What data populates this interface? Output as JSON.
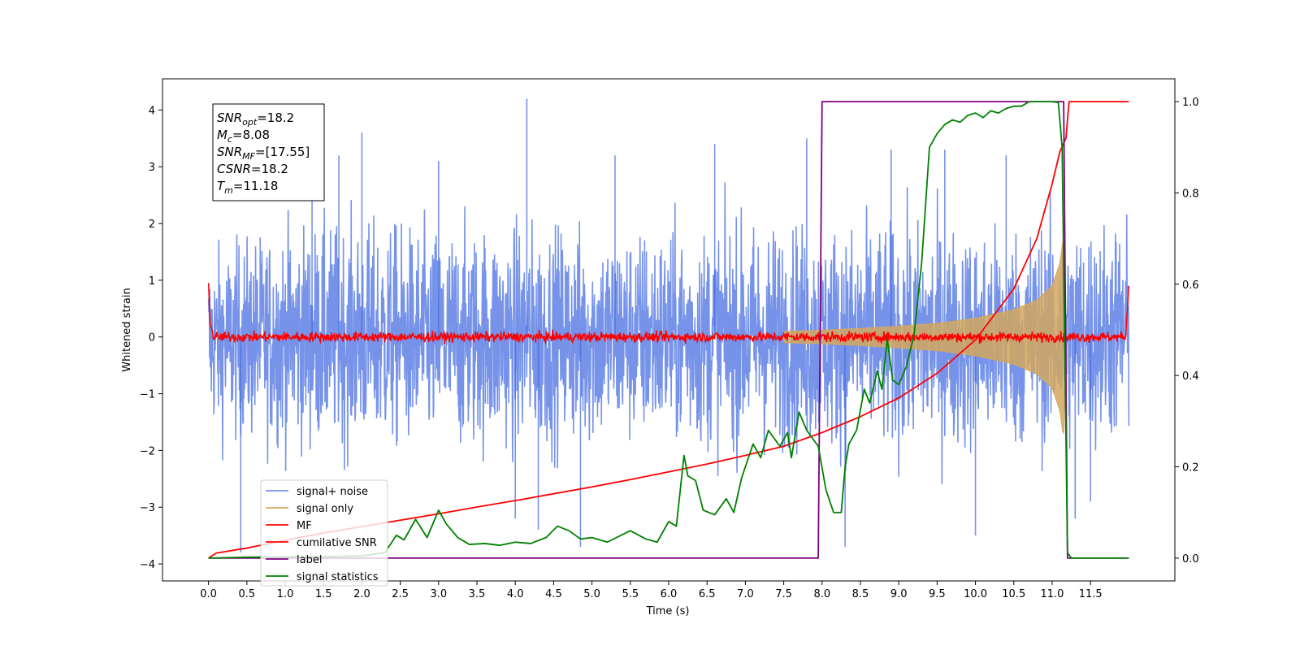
{
  "chart_data": {
    "type": "line",
    "xlabel": "Time (s)",
    "ylabel": "Whitened strain",
    "xlim": [
      -0.6,
      12.6
    ],
    "ylim": [
      -4.3,
      4.55
    ],
    "y2lim": [
      -0.05,
      1.05
    ],
    "x_ticks": [
      "0.0",
      "0.5",
      "1.0",
      "1.5",
      "2.0",
      "2.5",
      "3.0",
      "3.5",
      "4.0",
      "4.5",
      "5.0",
      "5.5",
      "6.0",
      "6.5",
      "7.0",
      "7.5",
      "8.0",
      "8.5",
      "9.0",
      "9.5",
      "10.0",
      "10.5",
      "11.0",
      "11.5"
    ],
    "y_ticks": [
      "4",
      "3",
      "2",
      "1",
      "0",
      "−1",
      "−2",
      "−3",
      "−4"
    ],
    "y2_ticks": [
      "1.0",
      "0.8",
      "0.6",
      "0.4",
      "0.2",
      "0.0"
    ],
    "grid": false,
    "legend_position": "lower-left",
    "annotation": {
      "lines": [
        {
          "sym": "SNR",
          "sub": "opt",
          "value": "=18.2"
        },
        {
          "sym": "M",
          "sub": "c",
          "value": "=8.08"
        },
        {
          "sym": "SNR",
          "sub": "MF",
          "value": "=[17.55]"
        },
        {
          "sym": "CSNR",
          "sub": "",
          "value": "=18.2"
        },
        {
          "sym": "T",
          "sub": "m",
          "value": "=11.18"
        }
      ]
    },
    "series": [
      {
        "name": "signal+ noise",
        "axis": "left",
        "color": "#4169e1",
        "kind": "noise_band",
        "x_range": [
          0.0,
          12.0
        ],
        "envelope_upper": [
          [
            0.0,
            2.1
          ],
          [
            1.0,
            2.6
          ],
          [
            2.0,
            2.7
          ],
          [
            3.0,
            2.6
          ],
          [
            4.0,
            2.7
          ],
          [
            5.0,
            2.6
          ],
          [
            6.0,
            2.6
          ],
          [
            7.0,
            2.7
          ],
          [
            8.0,
            2.7
          ],
          [
            9.0,
            2.7
          ],
          [
            10.0,
            2.6
          ],
          [
            11.0,
            2.7
          ],
          [
            12.0,
            2.8
          ]
        ],
        "envelope_lower": [
          [
            0.0,
            -2.3
          ],
          [
            1.0,
            -2.6
          ],
          [
            2.0,
            -2.7
          ],
          [
            3.0,
            -2.7
          ],
          [
            4.0,
            -2.7
          ],
          [
            5.0,
            -2.6
          ],
          [
            6.0,
            -2.6
          ],
          [
            7.0,
            -2.7
          ],
          [
            8.0,
            -2.7
          ],
          [
            9.0,
            -2.8
          ],
          [
            10.0,
            -2.7
          ],
          [
            11.0,
            -2.7
          ],
          [
            12.0,
            -2.6
          ]
        ],
        "spikes": [
          [
            0.42,
            -3.8
          ],
          [
            1.35,
            3.7
          ],
          [
            2.0,
            3.6
          ],
          [
            4.15,
            4.2
          ],
          [
            4.0,
            -3.2
          ],
          [
            4.3,
            -3.4
          ],
          [
            4.85,
            -3.7
          ],
          [
            6.6,
            3.4
          ],
          [
            7.8,
            3.5
          ],
          [
            8.3,
            -3.7
          ],
          [
            8.9,
            3.3
          ],
          [
            10.4,
            3.2
          ],
          [
            10.0,
            -3.5
          ],
          [
            11.3,
            -3.2
          ],
          [
            11.5,
            -2.9
          ],
          [
            1.7,
            3.2
          ],
          [
            3.0,
            3.1
          ],
          [
            5.3,
            3.2
          ],
          [
            9.6,
            3.3
          ]
        ]
      },
      {
        "name": "signal only",
        "axis": "left",
        "color": "#d4a75f",
        "kind": "chirp_envelope",
        "envelope": [
          [
            7.5,
            0.1
          ],
          [
            8.0,
            0.12
          ],
          [
            8.5,
            0.15
          ],
          [
            9.0,
            0.19
          ],
          [
            9.5,
            0.24
          ],
          [
            10.0,
            0.33
          ],
          [
            10.5,
            0.48
          ],
          [
            10.8,
            0.65
          ],
          [
            11.0,
            0.9
          ],
          [
            11.1,
            1.3
          ],
          [
            11.15,
            1.8
          ],
          [
            11.18,
            0.0
          ]
        ]
      },
      {
        "name": "MF",
        "axis": "left",
        "color": "#ff0000",
        "kind": "noise_trace",
        "x_range": [
          0.0,
          12.0
        ],
        "amplitude": 0.06,
        "edges": [
          [
            0.0,
            1.0
          ],
          [
            0.02,
            0.3
          ],
          [
            0.06,
            0.1
          ],
          [
            11.96,
            0.1
          ],
          [
            12.0,
            0.95
          ]
        ]
      },
      {
        "name": "cumilative SNR",
        "axis": "right",
        "color": "#ff0000",
        "kind": "line",
        "points": [
          [
            0.0,
            0.0
          ],
          [
            0.1,
            0.011
          ],
          [
            0.5,
            0.022
          ],
          [
            1.0,
            0.039
          ],
          [
            1.5,
            0.055
          ],
          [
            2.0,
            0.069
          ],
          [
            2.5,
            0.083
          ],
          [
            3.0,
            0.097
          ],
          [
            3.5,
            0.112
          ],
          [
            4.0,
            0.126
          ],
          [
            4.5,
            0.141
          ],
          [
            5.0,
            0.156
          ],
          [
            5.5,
            0.172
          ],
          [
            6.0,
            0.189
          ],
          [
            6.5,
            0.206
          ],
          [
            7.0,
            0.225
          ],
          [
            7.5,
            0.245
          ],
          [
            8.0,
            0.275
          ],
          [
            8.5,
            0.31
          ],
          [
            9.0,
            0.351
          ],
          [
            9.5,
            0.405
          ],
          [
            10.0,
            0.478
          ],
          [
            10.5,
            0.59
          ],
          [
            10.8,
            0.7
          ],
          [
            11.0,
            0.82
          ],
          [
            11.1,
            0.89
          ],
          [
            11.18,
            0.92
          ],
          [
            11.22,
            1.0
          ],
          [
            12.0,
            1.0
          ]
        ]
      },
      {
        "name": "label",
        "axis": "right",
        "color": "#800080",
        "kind": "line",
        "points": [
          [
            0.0,
            0.0
          ],
          [
            7.95,
            0.0
          ],
          [
            8.0,
            1.0
          ],
          [
            11.15,
            1.0
          ],
          [
            11.2,
            0.0
          ],
          [
            12.0,
            0.0
          ]
        ]
      },
      {
        "name": "signal statistics",
        "axis": "right",
        "color": "#008000",
        "kind": "line",
        "points": [
          [
            0.0,
            0.0
          ],
          [
            0.5,
            0.002
          ],
          [
            1.0,
            0.003
          ],
          [
            1.5,
            0.003
          ],
          [
            2.0,
            0.005
          ],
          [
            2.3,
            0.012
          ],
          [
            2.45,
            0.05
          ],
          [
            2.55,
            0.04
          ],
          [
            2.7,
            0.085
          ],
          [
            2.85,
            0.045
          ],
          [
            3.0,
            0.105
          ],
          [
            3.1,
            0.075
          ],
          [
            3.25,
            0.045
          ],
          [
            3.4,
            0.03
          ],
          [
            3.6,
            0.032
          ],
          [
            3.8,
            0.028
          ],
          [
            4.0,
            0.035
          ],
          [
            4.2,
            0.032
          ],
          [
            4.4,
            0.045
          ],
          [
            4.55,
            0.07
          ],
          [
            4.7,
            0.06
          ],
          [
            4.85,
            0.042
          ],
          [
            5.0,
            0.045
          ],
          [
            5.2,
            0.035
          ],
          [
            5.5,
            0.06
          ],
          [
            5.7,
            0.042
          ],
          [
            5.85,
            0.035
          ],
          [
            6.0,
            0.08
          ],
          [
            6.1,
            0.07
          ],
          [
            6.2,
            0.225
          ],
          [
            6.25,
            0.18
          ],
          [
            6.35,
            0.17
          ],
          [
            6.45,
            0.105
          ],
          [
            6.6,
            0.095
          ],
          [
            6.75,
            0.13
          ],
          [
            6.85,
            0.1
          ],
          [
            6.95,
            0.175
          ],
          [
            7.1,
            0.25
          ],
          [
            7.2,
            0.22
          ],
          [
            7.3,
            0.28
          ],
          [
            7.45,
            0.245
          ],
          [
            7.55,
            0.275
          ],
          [
            7.6,
            0.22
          ],
          [
            7.7,
            0.32
          ],
          [
            7.8,
            0.28
          ],
          [
            7.95,
            0.245
          ],
          [
            8.05,
            0.15
          ],
          [
            8.15,
            0.1
          ],
          [
            8.25,
            0.1
          ],
          [
            8.3,
            0.2
          ],
          [
            8.35,
            0.25
          ],
          [
            8.45,
            0.28
          ],
          [
            8.55,
            0.37
          ],
          [
            8.62,
            0.34
          ],
          [
            8.72,
            0.41
          ],
          [
            8.78,
            0.37
          ],
          [
            8.85,
            0.48
          ],
          [
            8.92,
            0.39
          ],
          [
            9.0,
            0.38
          ],
          [
            9.1,
            0.42
          ],
          [
            9.2,
            0.49
          ],
          [
            9.3,
            0.65
          ],
          [
            9.4,
            0.9
          ],
          [
            9.5,
            0.93
          ],
          [
            9.6,
            0.95
          ],
          [
            9.7,
            0.96
          ],
          [
            9.8,
            0.955
          ],
          [
            9.9,
            0.97
          ],
          [
            10.0,
            0.975
          ],
          [
            10.1,
            0.965
          ],
          [
            10.2,
            0.98
          ],
          [
            10.3,
            0.975
          ],
          [
            10.4,
            0.985
          ],
          [
            10.5,
            0.99
          ],
          [
            10.6,
            0.99
          ],
          [
            10.7,
            1.0
          ],
          [
            10.8,
            1.0
          ],
          [
            11.0,
            1.0
          ],
          [
            11.08,
            0.998
          ],
          [
            11.13,
            0.9
          ],
          [
            11.2,
            0.012
          ],
          [
            11.25,
            0.0
          ],
          [
            12.0,
            0.0
          ]
        ]
      }
    ]
  }
}
